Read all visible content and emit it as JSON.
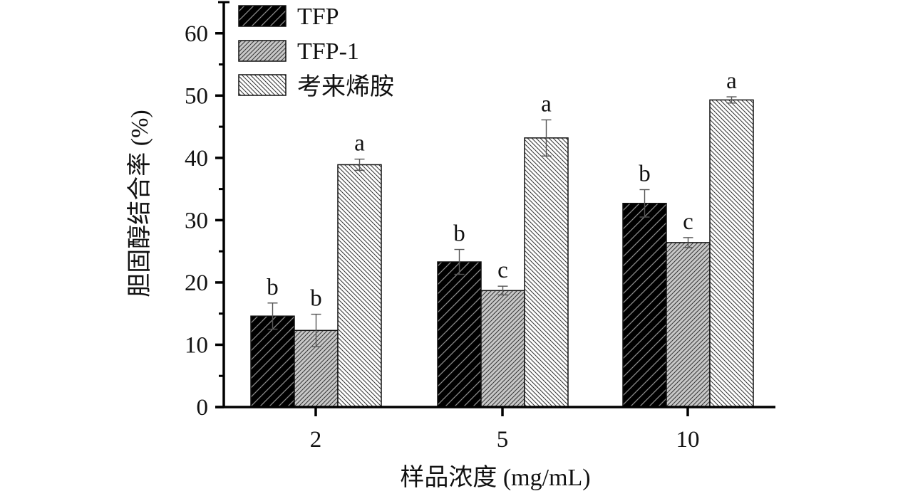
{
  "chart_data": {
    "type": "bar",
    "title": "",
    "xlabel": "样品浓度 (mg/mL)",
    "ylabel": "胆固醇结合率 (%)",
    "categories": [
      "2",
      "5",
      "10"
    ],
    "ylim": [
      0,
      65
    ],
    "yticks": [
      0,
      10,
      20,
      30,
      40,
      50,
      60
    ],
    "ytick_labels": [
      "0",
      "10",
      "20",
      "30",
      "40",
      "50",
      "60"
    ],
    "minor_ytick_step": 5,
    "grid": false,
    "legend_position": "top-left",
    "series": [
      {
        "name": "TFP",
        "values": [
          14.6,
          23.3,
          32.7
        ],
        "errors": [
          2.1,
          2.0,
          2.2
        ],
        "significance": [
          "b",
          "b",
          "b"
        ],
        "fill": "#000000",
        "hatch": "forward",
        "hatch_color": "#8a8a8a"
      },
      {
        "name": "TFP-1",
        "values": [
          12.3,
          18.7,
          26.4
        ],
        "errors": [
          2.6,
          0.7,
          0.8
        ],
        "significance": [
          "b",
          "c",
          "c"
        ],
        "fill": "#c8c8c8",
        "hatch": "forward",
        "hatch_color": "#3a3a3a"
      },
      {
        "name": "考来烯胺",
        "values": [
          38.9,
          43.2,
          49.3
        ],
        "errors": [
          0.9,
          2.9,
          0.5
        ],
        "significance": [
          "a",
          "a",
          "a"
        ],
        "fill": "#ffffff",
        "hatch": "backward",
        "hatch_color": "#3a3a3a"
      }
    ],
    "error_bar_color": "#555555",
    "axis_color": "#000000"
  }
}
